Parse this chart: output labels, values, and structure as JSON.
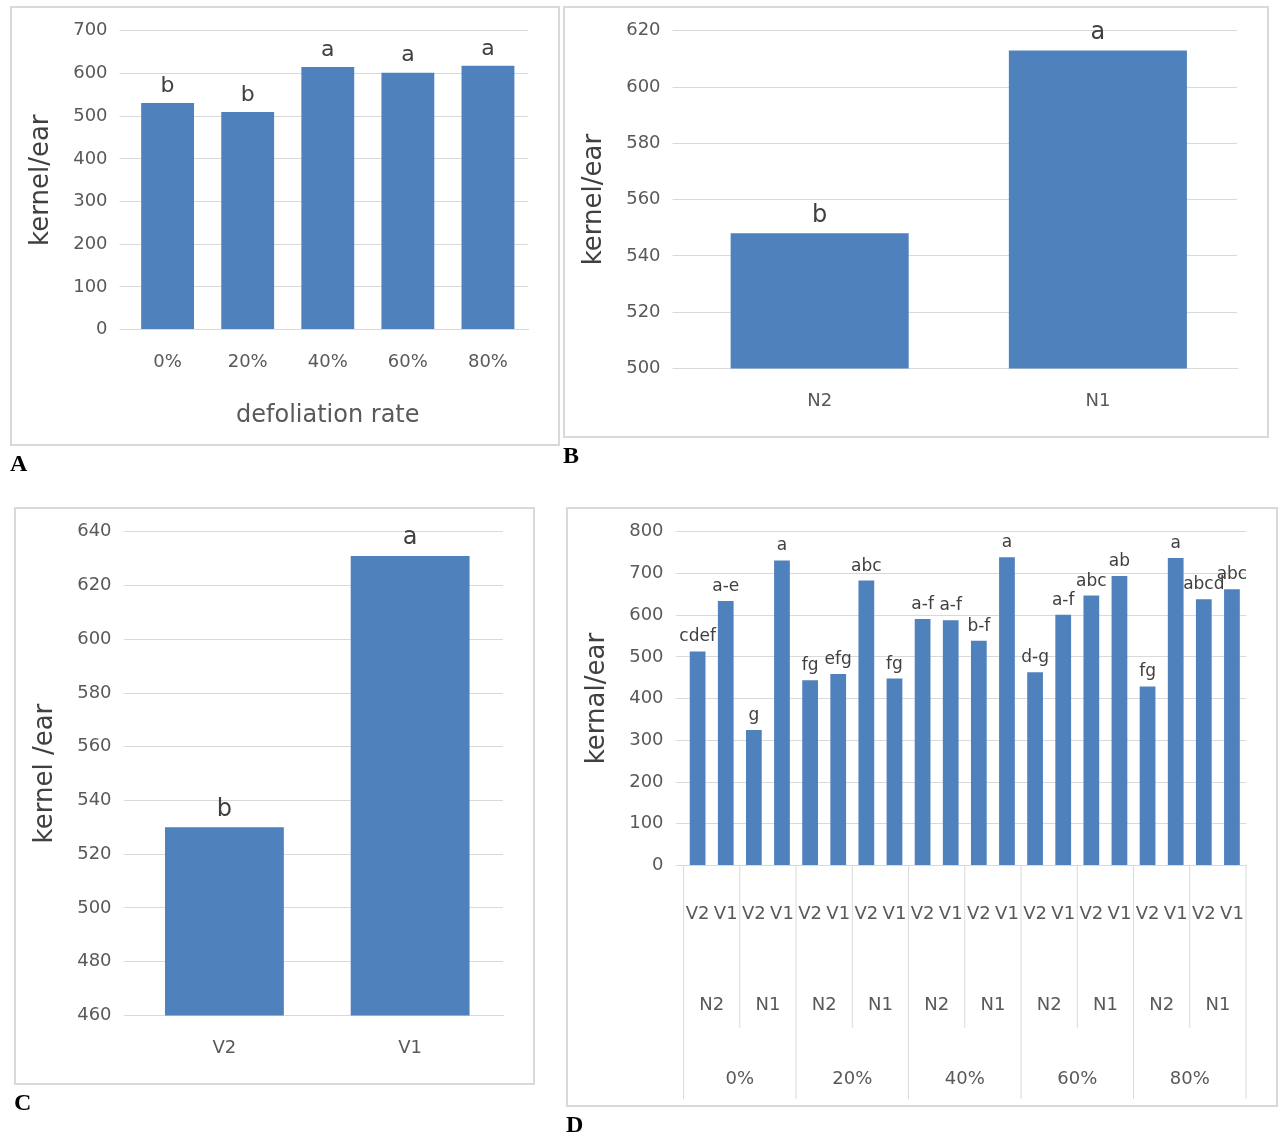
{
  "chart_data": [
    {
      "type": "bar",
      "title": "A",
      "categories": [
        "0%",
        "20%",
        "40%",
        "60%",
        "80%"
      ],
      "values": [
        531,
        510,
        615,
        602,
        618
      ],
      "value_labels": [
        "b",
        "b",
        "a",
        "a",
        "a"
      ],
      "color": "#4f81bd",
      "xlabel": "defoliation rate",
      "ylabel": "kernel/ear",
      "ylim": [
        0,
        700
      ],
      "yticks": [
        0,
        100,
        200,
        300,
        400,
        500,
        600,
        700
      ],
      "grid": "y"
    },
    {
      "type": "bar",
      "title": "B",
      "categories": [
        "N2",
        "N1"
      ],
      "values": [
        548,
        613
      ],
      "value_labels": [
        "b",
        "a"
      ],
      "color": "#4f81bd",
      "ylabel": "kernel/ear",
      "ylim": [
        500,
        620
      ],
      "yticks": [
        500,
        520,
        540,
        560,
        580,
        600,
        620
      ],
      "grid": "y"
    },
    {
      "type": "bar",
      "title": "C",
      "categories": [
        "V2",
        "V1"
      ],
      "values": [
        530,
        631
      ],
      "value_labels": [
        "b",
        "a"
      ],
      "color": "#4f81bd",
      "ylabel": "kernel /ear",
      "ylim": [
        460,
        640
      ],
      "yticks": [
        460,
        480,
        500,
        520,
        540,
        560,
        580,
        600,
        620,
        640
      ],
      "grid": "y"
    },
    {
      "type": "bar",
      "title": "D",
      "categories": [
        "V2",
        "V1",
        "V2",
        "V1",
        "V2",
        "V1",
        "V2",
        "V1",
        "V2",
        "V1",
        "V2",
        "V1",
        "V2",
        "V1",
        "V2",
        "V1",
        "V2",
        "V1",
        "V2",
        "V1"
      ],
      "values": [
        513,
        634,
        325,
        731,
        444,
        459,
        683,
        448,
        591,
        588,
        539,
        739,
        463,
        601,
        647,
        694,
        429,
        737,
        638,
        662
      ],
      "value_labels": [
        "cdef",
        "a-e",
        "g",
        "a",
        "fg",
        "efg",
        "abc",
        "fg",
        "a-f",
        "a-f",
        "b-f",
        "a",
        "d-g",
        "a-f",
        "abc",
        "ab",
        "fg",
        "a",
        "abcd",
        "abc"
      ],
      "color": "#4f81bd",
      "ylabel": "kernal/ear",
      "ylim": [
        0,
        800
      ],
      "yticks": [
        0,
        100,
        200,
        300,
        400,
        500,
        600,
        700,
        800
      ],
      "grid": "y",
      "annotations": [
        "N2",
        "N1",
        "N2",
        "N1",
        "N2",
        "N1",
        "N2",
        "N1",
        "N2",
        "N1",
        "0%",
        "20%",
        "40%",
        "60%",
        "80%"
      ]
    }
  ]
}
